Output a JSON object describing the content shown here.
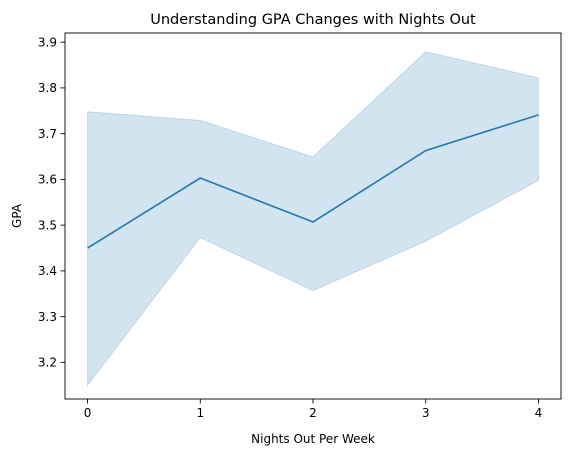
{
  "chart_data": {
    "type": "line",
    "title": "Understanding GPA Changes with Nights Out",
    "xlabel": "Nights Out Per Week",
    "ylabel": "GPA",
    "x": [
      0,
      1,
      2,
      3,
      4
    ],
    "xticks": [
      "0",
      "1",
      "2",
      "3",
      "4"
    ],
    "yticks": [
      "3.2",
      "3.3",
      "3.4",
      "3.5",
      "3.6",
      "3.7",
      "3.8",
      "3.9"
    ],
    "xlim": [
      -0.2,
      4.2
    ],
    "ylim": [
      3.12,
      3.92
    ],
    "series": [
      {
        "values": [
          3.45,
          3.603,
          3.507,
          3.663,
          3.741
        ],
        "ci_lower": [
          3.15,
          3.473,
          3.357,
          3.465,
          3.598
        ],
        "ci_upper": [
          3.748,
          3.729,
          3.649,
          3.879,
          3.822
        ],
        "color": "#1f77b4"
      }
    ],
    "grid": false,
    "legend": "none"
  }
}
